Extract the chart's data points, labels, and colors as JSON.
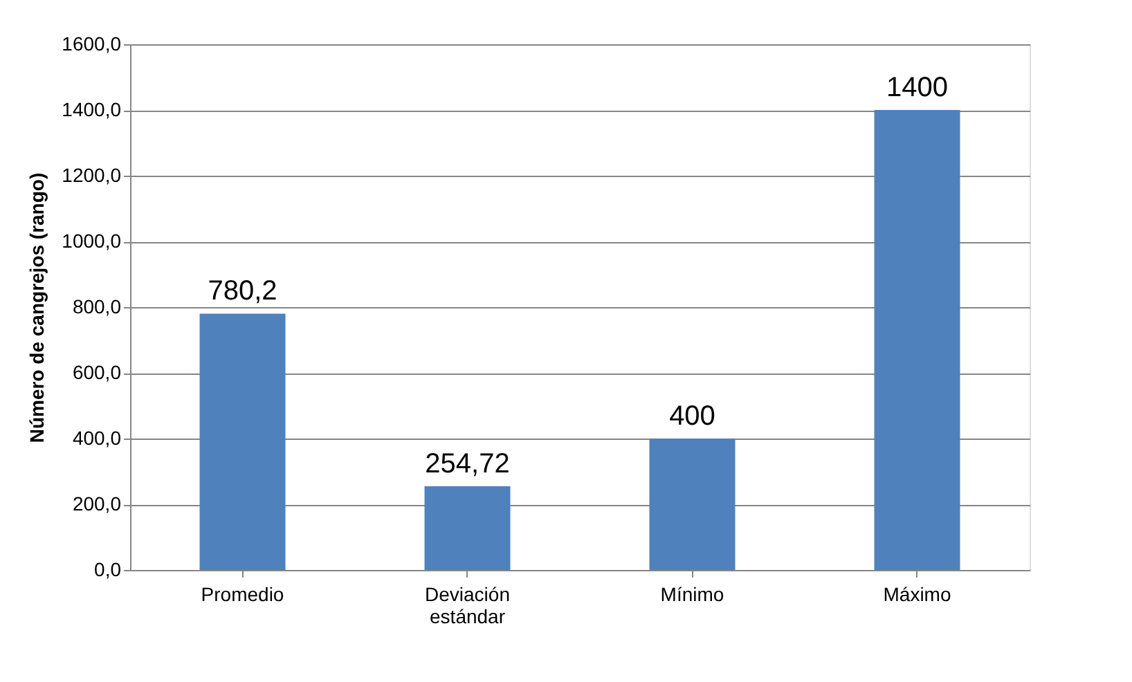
{
  "chart_data": {
    "type": "bar",
    "ylabel": "Número de cangrejos (rango)",
    "categories": [
      "Promedio",
      "Deviación estándar",
      "Mínimo",
      "Máximo"
    ],
    "values": [
      780.2,
      254.72,
      400,
      1400
    ],
    "value_labels": [
      "780,2",
      "254,72",
      "400",
      "1400"
    ],
    "color": "#4f81bd",
    "ylim": [
      0,
      1600
    ],
    "yticks": [
      {
        "value": 0,
        "label": "0,0"
      },
      {
        "value": 200,
        "label": "200,0"
      },
      {
        "value": 400,
        "label": "400,0"
      },
      {
        "value": 600,
        "label": "600,0"
      },
      {
        "value": 800,
        "label": "800,0"
      },
      {
        "value": 1000,
        "label": "1000,0"
      },
      {
        "value": 1200,
        "label": "1200,0"
      },
      {
        "value": 1400,
        "label": "1400,0"
      },
      {
        "value": 1600,
        "label": "1600,0"
      }
    ],
    "grid": "y"
  }
}
